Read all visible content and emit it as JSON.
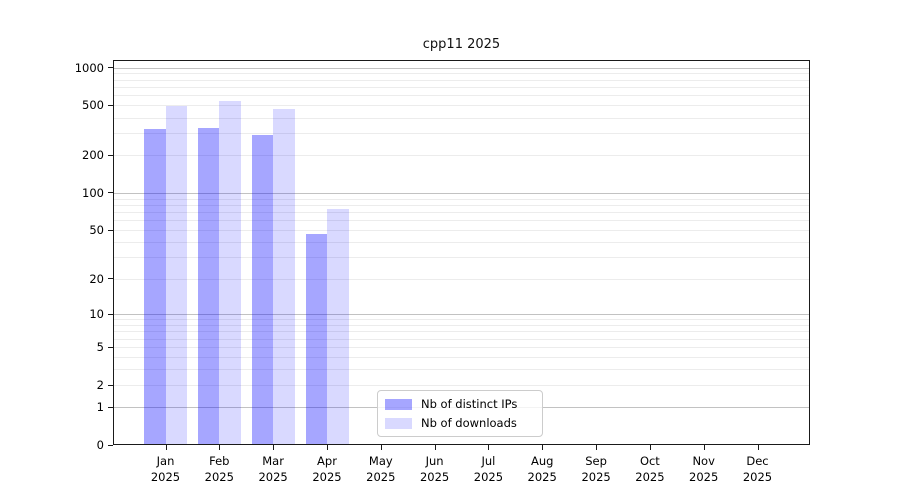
{
  "chart_data": {
    "type": "bar",
    "title": "cpp11 2025",
    "categories": [
      {
        "month": "Jan",
        "year": "2025"
      },
      {
        "month": "Feb",
        "year": "2025"
      },
      {
        "month": "Mar",
        "year": "2025"
      },
      {
        "month": "Apr",
        "year": "2025"
      },
      {
        "month": "May",
        "year": "2025"
      },
      {
        "month": "Jun",
        "year": "2025"
      },
      {
        "month": "Jul",
        "year": "2025"
      },
      {
        "month": "Aug",
        "year": "2025"
      },
      {
        "month": "Sep",
        "year": "2025"
      },
      {
        "month": "Oct",
        "year": "2025"
      },
      {
        "month": "Nov",
        "year": "2025"
      },
      {
        "month": "Dec",
        "year": "2025"
      }
    ],
    "series": [
      {
        "name": "Nb of distinct IPs",
        "color": "#a6a6ff",
        "color_rgba": "rgba(0,0,255,0.35)",
        "values": [
          326,
          333,
          290,
          47,
          null,
          null,
          null,
          null,
          null,
          null,
          null,
          null
        ]
      },
      {
        "name": "Nb of downloads",
        "color": "#d9d9ff",
        "color_rgba": "rgba(0,0,255,0.15)",
        "values": [
          493,
          540,
          472,
          74,
          null,
          null,
          null,
          null,
          null,
          null,
          null,
          null
        ]
      }
    ],
    "yticks": [
      0,
      1,
      2,
      5,
      10,
      20,
      50,
      100,
      200,
      500,
      1000
    ],
    "ylim": [
      0,
      1150
    ],
    "y_scale": "log10(value+1)",
    "xlabel": "",
    "ylabel": "",
    "grid": "horizontal, minor and major lines, decades darker",
    "legend_position": "bottom-center inside axes",
    "colors": {
      "grid_minor": "#ececec",
      "grid_decade": "#c2c2c2",
      "axis": "#1a1a1a",
      "background": "#ffffff"
    }
  }
}
